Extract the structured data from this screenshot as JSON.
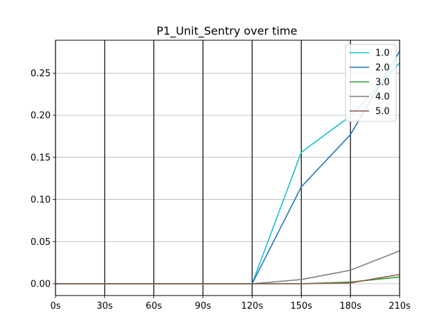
{
  "chart_data": {
    "type": "line",
    "title": "P1_Unit_Sentry over time",
    "xlabel": "",
    "ylabel": "",
    "x": [
      0,
      30,
      60,
      90,
      120,
      150,
      180,
      210
    ],
    "x_tick_labels": [
      "0s",
      "30s",
      "60s",
      "90s",
      "120s",
      "150s",
      "180s",
      "210s"
    ],
    "xlim": [
      0,
      210
    ],
    "y_ticks": [
      0.0,
      0.05,
      0.1,
      0.15,
      0.2,
      0.25
    ],
    "y_tick_labels": [
      "0.00",
      "0.05",
      "0.10",
      "0.15",
      "0.20",
      "0.25"
    ],
    "ylim": [
      -0.014,
      0.289
    ],
    "grid": "horizontal gridlines; black vertical lines at each x tick",
    "legend_position": "top-right",
    "series": [
      {
        "name": "1.0",
        "color": "#17becf",
        "values": [
          0,
          0,
          0,
          0,
          0,
          0.156,
          0.199,
          0.262
        ]
      },
      {
        "name": "2.0",
        "color": "#1f77b4",
        "values": [
          0,
          0,
          0,
          0,
          0,
          0.115,
          0.177,
          0.276
        ]
      },
      {
        "name": "3.0",
        "color": "#2ca02c",
        "values": [
          0,
          0,
          0,
          0,
          0,
          0.0,
          0.002,
          0.008
        ]
      },
      {
        "name": "4.0",
        "color": "#7f7f7f",
        "values": [
          0,
          0,
          0,
          0,
          0,
          0.005,
          0.016,
          0.039
        ]
      },
      {
        "name": "5.0",
        "color": "#8c564b",
        "values": [
          0,
          0,
          0,
          0,
          0,
          0.0,
          0.001,
          0.011
        ]
      }
    ]
  }
}
